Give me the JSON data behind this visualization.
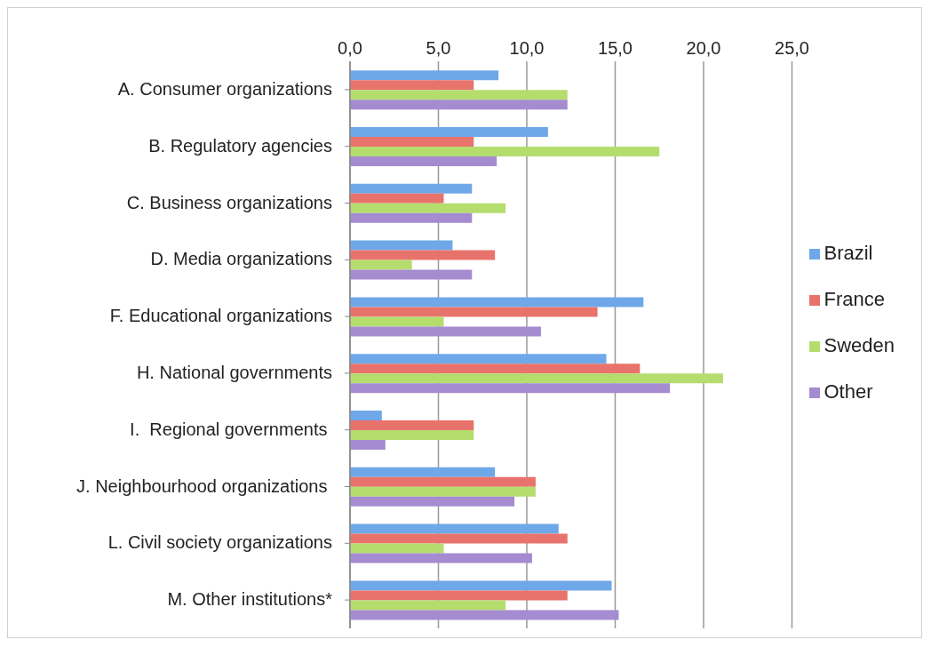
{
  "chart_data": {
    "type": "bar",
    "orientation": "horizontal",
    "categories": [
      "A. Consumer organizations",
      "B. Regulatory agencies",
      "C. Business organizations",
      "D. Media organizations",
      "F. Educational organizations",
      "H. National governments",
      "I.  Regional governments ",
      "J. Neighbourhood organizations ",
      "L. Civil society organizations",
      "M. Other institutions*"
    ],
    "series": [
      {
        "name": "Brazil",
        "color": "#6fa8e8",
        "values": [
          8.4,
          11.2,
          6.9,
          5.8,
          16.6,
          14.5,
          1.8,
          8.2,
          11.8,
          14.8
        ]
      },
      {
        "name": "France",
        "color": "#e8736c",
        "values": [
          7.0,
          7.0,
          5.3,
          8.2,
          14.0,
          16.4,
          7.0,
          10.5,
          12.3,
          12.3
        ]
      },
      {
        "name": "Sweden",
        "color": "#b5dd6e",
        "values": [
          12.3,
          17.5,
          8.8,
          3.5,
          5.3,
          21.1,
          7.0,
          10.5,
          5.3,
          8.8
        ]
      },
      {
        "name": "Other",
        "color": "#a58bd0",
        "values": [
          12.3,
          8.3,
          6.9,
          6.9,
          10.8,
          18.1,
          2.0,
          9.3,
          10.3,
          15.2
        ]
      }
    ],
    "xlim": [
      0,
      25
    ],
    "xticks": [
      {
        "value": 0,
        "label": "0,0"
      },
      {
        "value": 5,
        "label": "5,0"
      },
      {
        "value": 10,
        "label": "10,0"
      },
      {
        "value": 15,
        "label": "15,0"
      },
      {
        "value": 20,
        "label": "20,0"
      },
      {
        "value": 25,
        "label": "25,0"
      }
    ],
    "grid": "x",
    "legend": "right"
  }
}
